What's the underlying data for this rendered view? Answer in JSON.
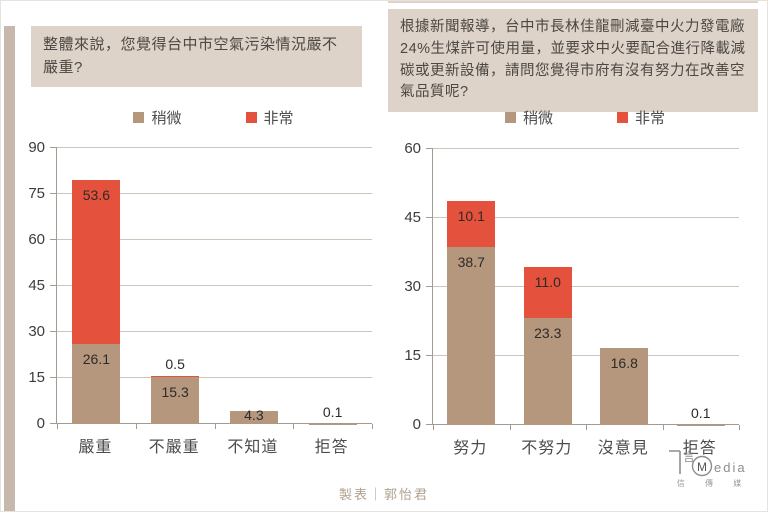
{
  "footer": {
    "credit": "製表｜郭怡君"
  },
  "logo": {
    "yan": "言",
    "m": "M",
    "edia": "edia",
    "zh": "信 傳 媒"
  },
  "colors": {
    "slight": "#b5977d",
    "very": "#e4523d",
    "title_bg": "#ddd3c9",
    "stripe": "#c6b8ac",
    "gridline": "#ccc5bc",
    "axis": "#a39b91"
  },
  "chart_data": [
    {
      "type": "bar",
      "stacked": true,
      "title": "整體來說，您覺得台中市空氣污染情況嚴不嚴重?",
      "categories": [
        "嚴重",
        "不嚴重",
        "不知道",
        "拒答"
      ],
      "series": [
        {
          "name": "稍微",
          "color": "#b5977d",
          "values": [
            26.1,
            15.3,
            4.3,
            0.1
          ]
        },
        {
          "name": "非常",
          "color": "#e4523d",
          "values": [
            53.6,
            0.5,
            0,
            0
          ]
        }
      ],
      "ylim": [
        0,
        90
      ],
      "ystep": 15,
      "grid": true,
      "legend_position": "top"
    },
    {
      "type": "bar",
      "stacked": true,
      "title": "根據新聞報導，台中市長林佳龍刪減臺中火力發電廠24%生煤許可使用量，並要求中火要配合進行降載減碳或更新設備，請問您覺得市府有沒有努力在改善空氣品質呢?",
      "categories": [
        "努力",
        "不努力",
        "沒意見",
        "拒答"
      ],
      "series": [
        {
          "name": "稍微",
          "color": "#b5977d",
          "values": [
            38.7,
            23.3,
            16.8,
            0.1
          ]
        },
        {
          "name": "非常",
          "color": "#e4523d",
          "values": [
            10.1,
            11.0,
            0,
            0
          ]
        }
      ],
      "ylim": [
        0,
        60
      ],
      "ystep": 15,
      "grid": true,
      "legend_position": "top"
    }
  ]
}
